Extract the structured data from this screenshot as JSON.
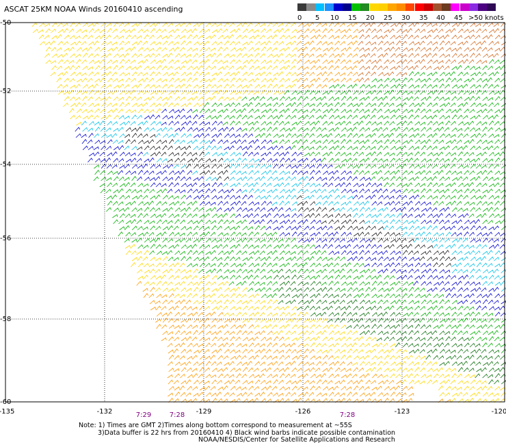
{
  "title": "ASCAT 25KM NOAA Winds 20160410 ascending",
  "legend": {
    "swatches": [
      {
        "color": "#3a3a3a"
      },
      {
        "color": "#8a8a8a"
      },
      {
        "color": "#00bfff"
      },
      {
        "color": "#1e90ff"
      },
      {
        "color": "#0000cd"
      },
      {
        "color": "#00008b"
      },
      {
        "color": "#00c000"
      },
      {
        "color": "#228b22"
      },
      {
        "color": "#ffd700"
      },
      {
        "color": "#ffd000"
      },
      {
        "color": "#ffa500"
      },
      {
        "color": "#ff8c00"
      },
      {
        "color": "#ff4500"
      },
      {
        "color": "#ff0000"
      },
      {
        "color": "#cc0000"
      },
      {
        "color": "#a0522d"
      },
      {
        "color": "#6b3a1f"
      },
      {
        "color": "#ff00ff"
      },
      {
        "color": "#cc00cc"
      },
      {
        "color": "#8a2be2"
      },
      {
        "color": "#4b0082"
      },
      {
        "color": "#2e0854"
      }
    ],
    "labels": [
      "0",
      "5",
      "10",
      "15",
      "20",
      "25",
      "30",
      "35",
      "40",
      "45",
      ">50 knots"
    ]
  },
  "map": {
    "lat_labels": [
      "-50",
      "-52",
      "-54",
      "-56",
      "-58",
      "-60"
    ],
    "lon_labels": [
      "-135",
      "-132",
      "-129",
      "-126",
      "-123",
      "-120"
    ],
    "time_labels": [
      "7:29",
      "7:28",
      "7:28"
    ],
    "barb_colors": {
      "calm": "#1a1a1a",
      "cyan": "#00c0e8",
      "blue": "#0000cd",
      "green": "#00b000",
      "darkgreen": "#0a6e0a",
      "yellow": "#ffd700",
      "orange": "#ff9900",
      "red": "#d2691e"
    }
  },
  "notes": {
    "line1": "Note: 1) Times are GMT 2)Times along bottom correspond to measurement at ~55S",
    "line2": "3)Data buffer is 22 hrs from 20160410 4) Black wind barbs indicate possible contamination",
    "line3": "NOAA/NESDIS/Center for Satellite Applications and Research"
  }
}
